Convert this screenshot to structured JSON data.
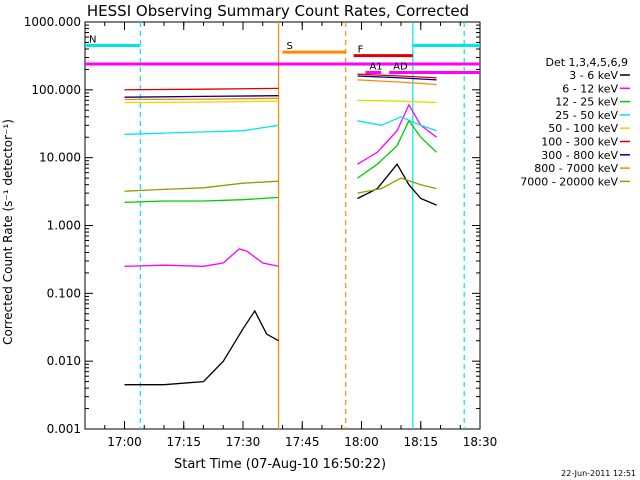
{
  "chart_data": {
    "type": "line",
    "title": "HESSI Observing Summary Count Rates, Corrected",
    "xlabel": "Start Time (07-Aug-10 16:50:22)",
    "ylabel": "Corrected Count Rate (s⁻¹ detector⁻¹)",
    "y_scale": "log",
    "ylim": [
      0.001,
      1000
    ],
    "xlim": [
      "16:50",
      "18:30"
    ],
    "x_tick_labels": [
      "17:00",
      "17:15",
      "17:30",
      "17:45",
      "18:00",
      "18:15",
      "18:30"
    ],
    "y_tick_labels": [
      "1000.000",
      "100.000",
      "10.000",
      "1.000",
      "0.100",
      "0.010",
      "0.001"
    ],
    "y_tick_values": [
      1000,
      100,
      10,
      1,
      0.1,
      0.01,
      0.001
    ],
    "legend_title": "Det 1,3,4,5,6,9",
    "legend_position": "right",
    "grid": false,
    "series": [
      {
        "name": "3 - 6 keV",
        "color": "#000000",
        "x": [
          "17:00",
          "17:10",
          "17:20",
          "17:25",
          "17:30",
          "17:33",
          "17:36",
          "17:39",
          "17:59",
          "18:04",
          "18:09",
          "18:12",
          "18:15",
          "18:19"
        ],
        "values": [
          0.0045,
          0.0045,
          0.005,
          0.01,
          0.03,
          0.055,
          0.025,
          0.02,
          2.5,
          3.5,
          8,
          4,
          2.5,
          2
        ]
      },
      {
        "name": "6 - 12 keV",
        "color": "#ff00ff",
        "x": [
          "17:00",
          "17:10",
          "17:20",
          "17:25",
          "17:29",
          "17:31",
          "17:35",
          "17:39",
          "17:59",
          "18:04",
          "18:09",
          "18:12",
          "18:15",
          "18:19"
        ],
        "values": [
          0.25,
          0.26,
          0.25,
          0.28,
          0.45,
          0.42,
          0.28,
          0.25,
          8,
          12,
          25,
          60,
          30,
          20
        ]
      },
      {
        "name": "12 - 25 keV",
        "color": "#00cc00",
        "x": [
          "17:00",
          "17:10",
          "17:20",
          "17:30",
          "17:39",
          "17:59",
          "18:04",
          "18:09",
          "18:12",
          "18:15",
          "18:19"
        ],
        "values": [
          2.2,
          2.3,
          2.3,
          2.4,
          2.6,
          5,
          8,
          15,
          35,
          20,
          12
        ]
      },
      {
        "name": "25 - 50 keV",
        "color": "#00e5e5",
        "x": [
          "17:00",
          "17:10",
          "17:20",
          "17:30",
          "17:39",
          "17:59",
          "18:05",
          "18:10",
          "18:15",
          "18:19"
        ],
        "values": [
          22,
          23,
          24,
          25,
          30,
          35,
          30,
          40,
          30,
          25
        ]
      },
      {
        "name": "50 - 100 keV",
        "color": "#dddd00",
        "x": [
          "17:00",
          "17:20",
          "17:39",
          "17:59",
          "18:10",
          "18:19"
        ],
        "values": [
          65,
          66,
          68,
          70,
          68,
          65
        ]
      },
      {
        "name": "100 - 300 keV",
        "color": "#dd0000",
        "x": [
          "17:00",
          "17:20",
          "17:39",
          "17:59",
          "18:10",
          "18:19"
        ],
        "values": [
          100,
          102,
          105,
          170,
          160,
          150
        ]
      },
      {
        "name": "300 - 800 keV",
        "color": "#00008b",
        "x": [
          "17:00",
          "17:20",
          "17:39",
          "17:59",
          "18:10",
          "18:19"
        ],
        "values": [
          78,
          80,
          82,
          160,
          150,
          140
        ]
      },
      {
        "name": "800 - 7000 keV",
        "color": "#ff8800",
        "x": [
          "17:00",
          "17:20",
          "17:39",
          "17:59",
          "18:10",
          "18:19"
        ],
        "values": [
          72,
          73,
          75,
          140,
          130,
          120
        ]
      },
      {
        "name": "7000 - 20000 keV",
        "color": "#999900",
        "x": [
          "17:00",
          "17:10",
          "17:20",
          "17:30",
          "17:39",
          "17:59",
          "18:05",
          "18:10",
          "18:15",
          "18:19"
        ],
        "values": [
          3.2,
          3.4,
          3.6,
          4.2,
          4.5,
          3,
          3.5,
          5,
          4,
          3.5
        ]
      }
    ],
    "flag_bars": [
      {
        "label": "N",
        "color": "#00e5e5",
        "x1": "16:50",
        "x2": "17:04",
        "y": 450
      },
      {
        "label": "",
        "color": "#00e5e5",
        "x1": "18:13",
        "x2": "18:31",
        "y": 450
      },
      {
        "label": "S",
        "color": "#ff8800",
        "x1": "17:40",
        "x2": "17:56",
        "y": 360
      },
      {
        "label": "F",
        "color": "#dd0000",
        "x1": "17:58",
        "x2": "18:13",
        "y": 320
      },
      {
        "label": "",
        "color": "#ff00ff",
        "x1": "16:50",
        "x2": "18:31",
        "y": 240
      },
      {
        "label": "AD",
        "color": "#ff00ff",
        "x1": "18:07",
        "x2": "18:31",
        "y": 180
      },
      {
        "label": "A1",
        "color": "#ff00ff",
        "x1": "18:01",
        "x2": "18:05",
        "y": 180
      }
    ],
    "vertical_lines": [
      {
        "x": "17:04",
        "color": "#00e5e5",
        "style": "dashed"
      },
      {
        "x": "17:39",
        "color": "#ff8800",
        "style": "solid"
      },
      {
        "x": "17:56",
        "color": "#ff8800",
        "style": "dashed"
      },
      {
        "x": "18:13",
        "color": "#00e5e5",
        "style": "solid"
      },
      {
        "x": "18:26",
        "color": "#00e5e5",
        "style": "dashed"
      }
    ],
    "footer_timestamp": "22-Jun-2011 12:51"
  }
}
